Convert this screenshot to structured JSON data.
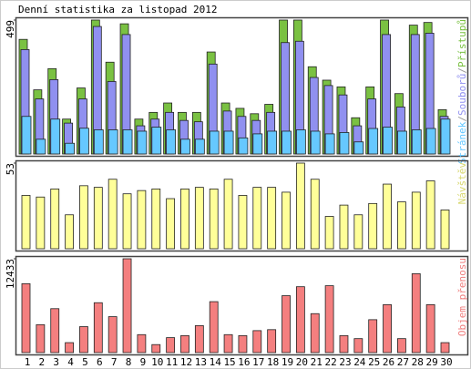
{
  "title": "Denní statistika za listopad 2012",
  "chart_data": [
    {
      "type": "bar",
      "ylim": [
        0,
        499
      ],
      "yticks": [
        499
      ],
      "legend_separator": "/",
      "legend_separator_color": "#999999",
      "series": [
        {
          "name": "Přístupů",
          "color": "#7ac142",
          "values": [
            427,
            239,
            318,
            130,
            246,
            499,
            342,
            485,
            130,
            155,
            190,
            155,
            155,
            380,
            190,
            170,
            150,
            185,
            499,
            499,
            325,
            275,
            250,
            135,
            250,
            499,
            225,
            480,
            490,
            165
          ]
        },
        {
          "name": "Souborů",
          "color": "#9090f0",
          "values": [
            389,
            205,
            277,
            115,
            205,
            475,
            270,
            445,
            105,
            130,
            155,
            125,
            120,
            335,
            160,
            140,
            125,
            155,
            415,
            420,
            285,
            255,
            220,
            105,
            205,
            445,
            175,
            445,
            450,
            140
          ]
        },
        {
          "name": "Stránek",
          "color": "#66c8ff",
          "values": [
            140,
            55,
            130,
            40,
            96,
            90,
            90,
            90,
            85,
            100,
            90,
            55,
            55,
            85,
            85,
            60,
            75,
            85,
            85,
            90,
            85,
            75,
            80,
            45,
            95,
            100,
            85,
            90,
            95,
            130
          ]
        }
      ]
    },
    {
      "type": "bar",
      "ylim": [
        0,
        53
      ],
      "yticks": [
        53
      ],
      "series": [
        {
          "name": "Návštěv",
          "color": "#ffff99",
          "label_color": "#d8d870",
          "values": [
            33,
            32,
            37,
            21,
            39,
            38,
            43,
            34,
            36,
            37,
            31,
            37,
            38,
            37,
            43,
            33,
            38,
            38,
            35,
            53,
            43,
            20,
            27,
            21,
            28,
            40,
            29,
            35,
            42,
            24
          ]
        }
      ]
    },
    {
      "type": "bar",
      "ylim": [
        0,
        12433
      ],
      "yticks": [
        12433
      ],
      "series": [
        {
          "name": "Objem přenosu",
          "color": "#f47f7f",
          "label_color": "#f08080",
          "values": [
            9127,
            3700,
            5820,
            1320,
            3440,
            6610,
            4760,
            12433,
            2380,
            1060,
            1980,
            2250,
            3570,
            6750,
            2380,
            2250,
            2910,
            3040,
            7540,
            8730,
            5160,
            8860,
            2250,
            1850,
            4360,
            6350,
            1850,
            10450,
            6350,
            1320
          ]
        }
      ],
      "categories": [
        "1",
        "2",
        "3",
        "4",
        "5",
        "6",
        "7",
        "8",
        "9",
        "10",
        "11",
        "12",
        "13",
        "14",
        "15",
        "16",
        "17",
        "18",
        "19",
        "20",
        "21",
        "22",
        "23",
        "24",
        "25",
        "26",
        "27",
        "28",
        "29",
        "30"
      ],
      "highlight_indices": [
        2,
        3,
        9,
        10,
        16,
        17,
        23,
        24
      ],
      "highlight_color": "#66aa22"
    }
  ]
}
